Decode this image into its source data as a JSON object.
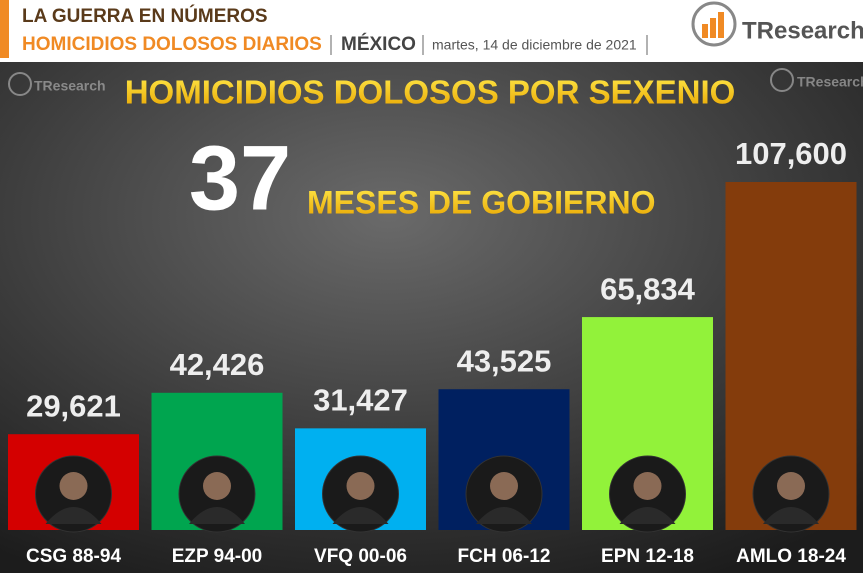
{
  "header": {
    "title": "LA GUERRA EN NÚMEROS",
    "subtitle": "HOMICIDIOS DOLOSOS DIARIOS",
    "location": "MÉXICO",
    "date": "martes, 14 de diciembre de 2021",
    "logo": "TResearch"
  },
  "chart_data": {
    "type": "bar",
    "title": "HOMICIDIOS DOLOSOS POR SEXENIO",
    "annotations": {
      "months": 37,
      "months_label": "MESES DE GOBIERNO"
    },
    "categories": [
      "CSG 88-94",
      "EZP 94-00",
      "VFQ 00-06",
      "FCH 06-12",
      "EPN 12-18",
      "AMLO 18-24"
    ],
    "values": [
      29621,
      42426,
      31427,
      43525,
      65834,
      107600
    ],
    "value_labels": [
      "29,621",
      "42,426",
      "31,427",
      "43,525",
      "65,834",
      "107,600"
    ],
    "colors": [
      "#d40000",
      "#00a54f",
      "#00b0f0",
      "#002060",
      "#92f23a",
      "#843c0c"
    ]
  }
}
